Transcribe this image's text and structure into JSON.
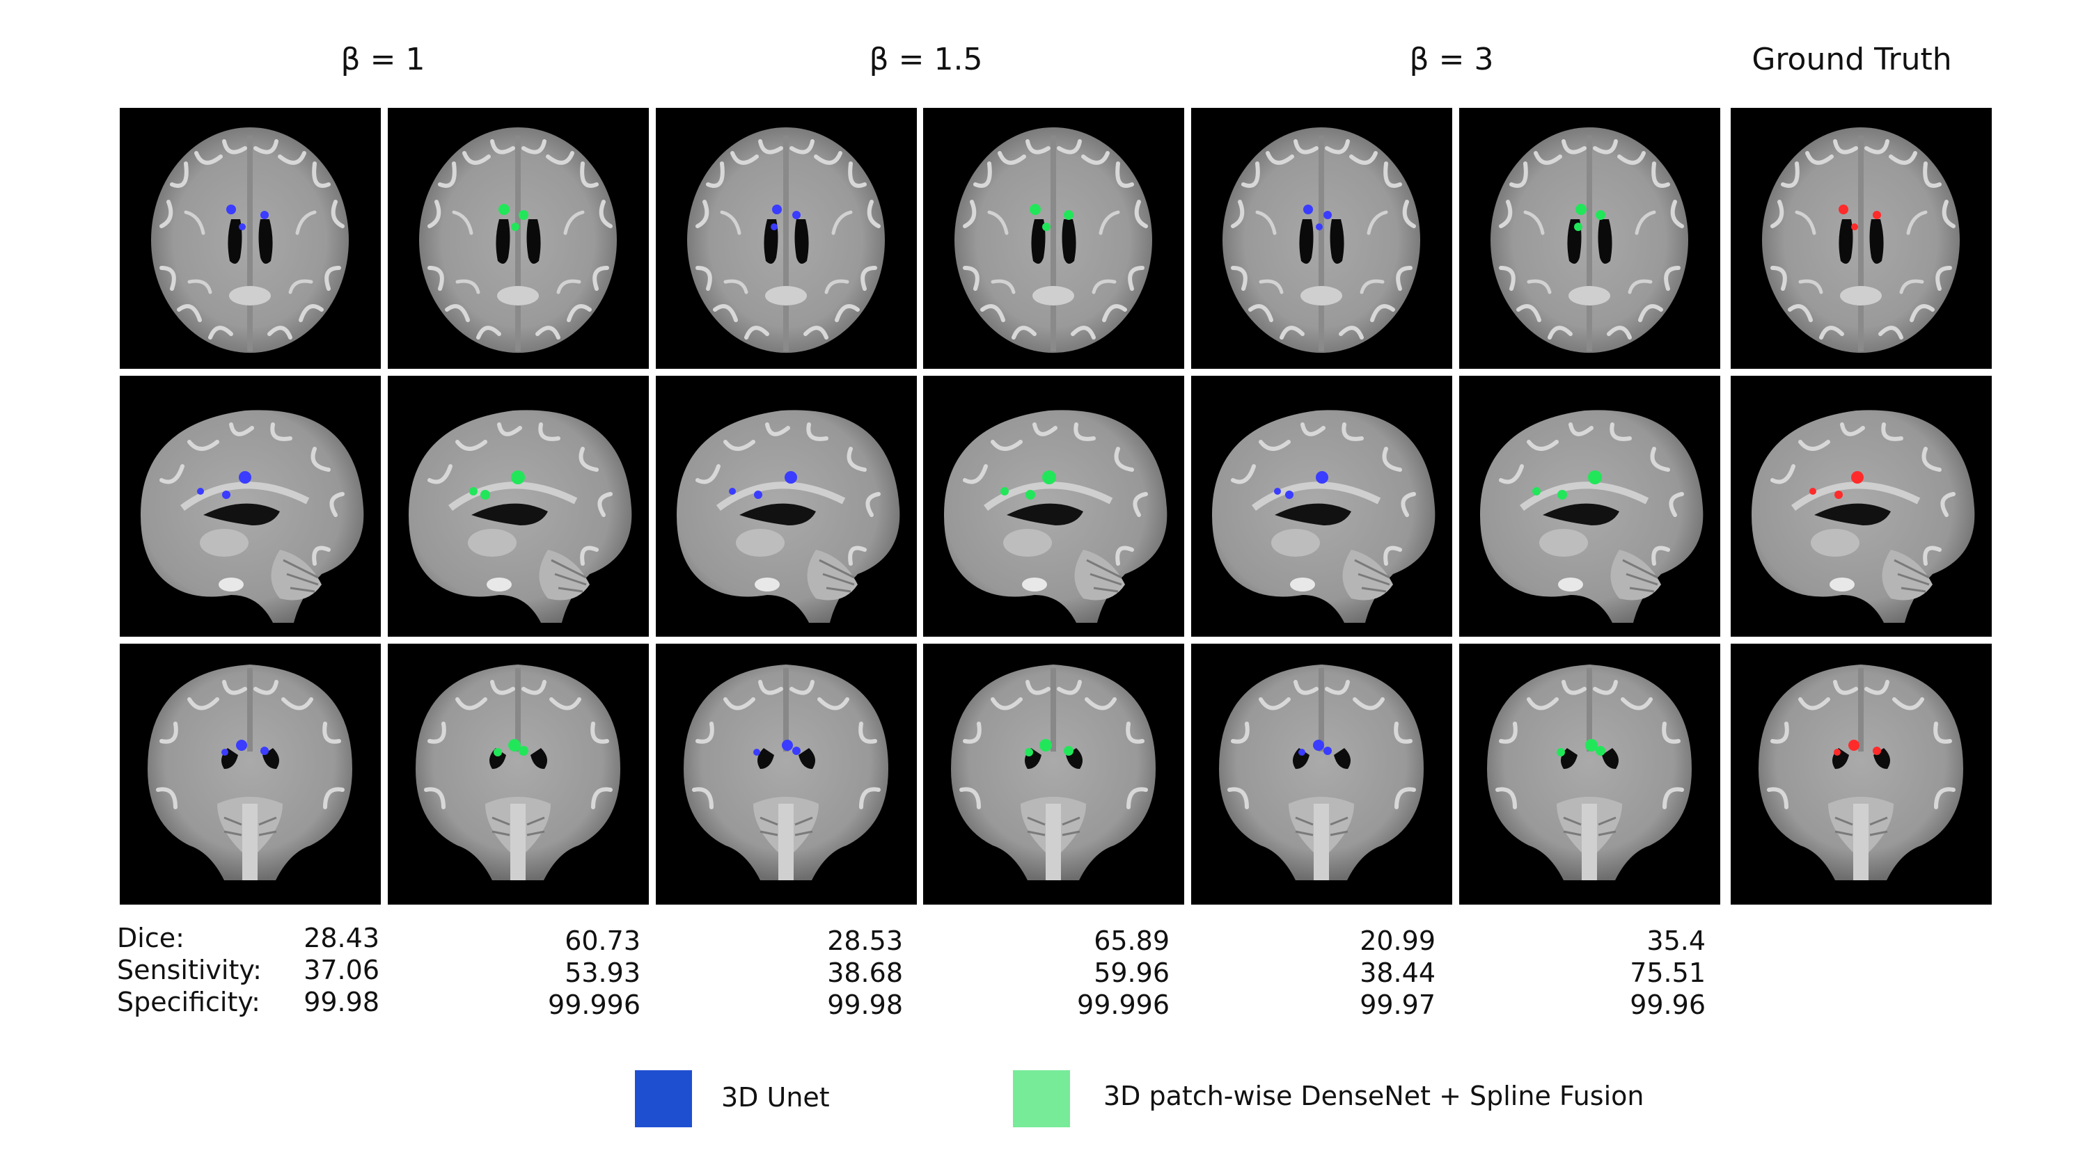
{
  "column_titles": [
    {
      "name": "beta-1",
      "text": "β = 1"
    },
    {
      "name": "beta-1-5",
      "text": "β = 1.5"
    },
    {
      "name": "beta-3",
      "text": "β = 3"
    },
    {
      "name": "ground-truth",
      "text": "Ground Truth"
    }
  ],
  "metrics": {
    "labels": [
      "Dice:",
      "Sensitivity:",
      "Specificity:"
    ],
    "columns": [
      [
        "28.43",
        "37.06",
        "99.98"
      ],
      [
        "60.73",
        "53.93",
        "99.996"
      ],
      [
        "28.53",
        "38.68",
        "99.98"
      ],
      [
        "65.89",
        "59.96",
        "99.996"
      ],
      [
        "20.99",
        "38.44",
        "99.97"
      ],
      [
        "35.4",
        "75.51",
        "99.96"
      ]
    ]
  },
  "legend": [
    {
      "name": "unet",
      "label": "3D Unet",
      "color": "#1f4fd1"
    },
    {
      "name": "densenet",
      "label": "3D patch-wise DenseNet + Spline Fusion",
      "color": "#77eb98"
    }
  ],
  "colors": {
    "unet": "#3a3cff",
    "densenet": "#22e65a",
    "ground_truth": "#ff2b2b",
    "panel_background": "#000000"
  },
  "panels": {
    "column_methods": [
      "unet",
      "densenet",
      "unet",
      "densenet",
      "unet",
      "densenet",
      "ground_truth"
    ],
    "row_views": [
      "axial",
      "sagittal",
      "coronal"
    ]
  }
}
